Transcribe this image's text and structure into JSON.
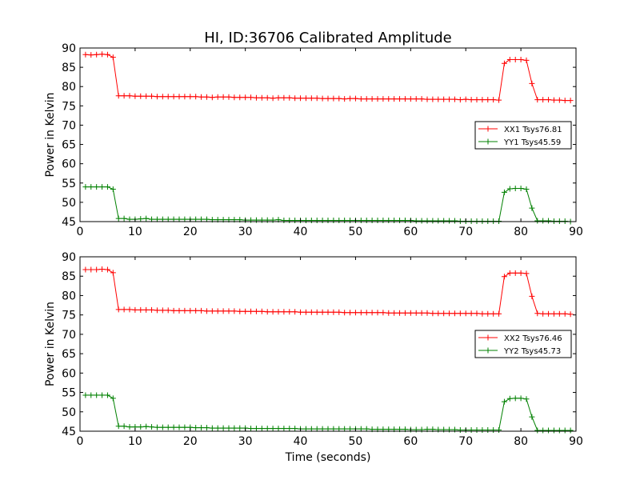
{
  "title": "HI, ID:36706 Calibrated Amplitude",
  "colors": {
    "xx": "#ff0000",
    "yy": "#008000"
  },
  "chart_data": [
    {
      "type": "line",
      "xlabel": "",
      "ylabel": "Power in Kelvin",
      "xlim": [
        0,
        90
      ],
      "ylim": [
        45,
        90
      ],
      "xticks": [
        "0",
        "10",
        "20",
        "30",
        "40",
        "50",
        "60",
        "70",
        "80",
        "90"
      ],
      "yticks": [
        "45",
        "50",
        "55",
        "60",
        "65",
        "70",
        "75",
        "80",
        "85",
        "90"
      ],
      "grid": false,
      "legend_position": "center-right",
      "x": [
        1,
        2,
        3,
        4,
        5,
        6,
        7,
        8,
        9,
        10,
        11,
        12,
        13,
        14,
        15,
        16,
        17,
        18,
        19,
        20,
        21,
        22,
        23,
        24,
        25,
        26,
        27,
        28,
        29,
        30,
        31,
        32,
        33,
        34,
        35,
        36,
        37,
        38,
        39,
        40,
        41,
        42,
        43,
        44,
        45,
        46,
        47,
        48,
        49,
        50,
        51,
        52,
        53,
        54,
        55,
        56,
        57,
        58,
        59,
        60,
        61,
        62,
        63,
        64,
        65,
        66,
        67,
        68,
        69,
        70,
        71,
        72,
        73,
        74,
        75,
        76,
        77,
        78,
        79,
        80,
        81,
        82,
        83,
        84,
        85,
        86,
        87,
        88,
        89
      ],
      "series": [
        {
          "name": "XX1 Tsys76.81",
          "color": "#ff0000",
          "values": [
            88.3,
            88.2,
            88.3,
            88.4,
            88.3,
            87.6,
            77.6,
            77.6,
            77.6,
            77.5,
            77.5,
            77.5,
            77.5,
            77.4,
            77.4,
            77.4,
            77.4,
            77.4,
            77.4,
            77.4,
            77.4,
            77.3,
            77.3,
            77.2,
            77.3,
            77.3,
            77.3,
            77.2,
            77.2,
            77.2,
            77.2,
            77.1,
            77.1,
            77.1,
            77.0,
            77.1,
            77.1,
            77.1,
            77.0,
            77.0,
            77.0,
            77.0,
            77.0,
            76.9,
            76.9,
            76.9,
            76.9,
            76.8,
            76.9,
            76.9,
            76.8,
            76.8,
            76.8,
            76.8,
            76.8,
            76.8,
            76.8,
            76.8,
            76.8,
            76.8,
            76.8,
            76.8,
            76.7,
            76.7,
            76.7,
            76.7,
            76.7,
            76.7,
            76.6,
            76.7,
            76.6,
            76.6,
            76.6,
            76.6,
            76.6,
            76.5,
            86.0,
            87.0,
            87.0,
            87.0,
            86.8,
            80.8,
            76.6,
            76.6,
            76.6,
            76.5,
            76.5,
            76.4,
            76.4
          ]
        },
        {
          "name": "YY1 Tsys45.59",
          "color": "#008000",
          "values": [
            54.0,
            54.0,
            54.0,
            54.0,
            54.0,
            53.4,
            45.8,
            45.8,
            45.6,
            45.6,
            45.7,
            45.8,
            45.6,
            45.6,
            45.6,
            45.6,
            45.6,
            45.6,
            45.6,
            45.6,
            45.6,
            45.6,
            45.6,
            45.5,
            45.5,
            45.5,
            45.5,
            45.5,
            45.5,
            45.4,
            45.4,
            45.4,
            45.4,
            45.4,
            45.4,
            45.5,
            45.3,
            45.3,
            45.3,
            45.3,
            45.3,
            45.3,
            45.3,
            45.3,
            45.3,
            45.3,
            45.3,
            45.3,
            45.3,
            45.3,
            45.3,
            45.3,
            45.3,
            45.3,
            45.3,
            45.3,
            45.3,
            45.3,
            45.3,
            45.3,
            45.2,
            45.2,
            45.2,
            45.2,
            45.2,
            45.2,
            45.2,
            45.2,
            45.1,
            45.1,
            45.1,
            45.1,
            45.1,
            45.1,
            45.1,
            45.1,
            52.6,
            53.5,
            53.6,
            53.6,
            53.4,
            48.5,
            45.2,
            45.2,
            45.2,
            45.1,
            45.1,
            45.1,
            45.0
          ]
        }
      ]
    },
    {
      "type": "line",
      "xlabel": "Time (seconds)",
      "ylabel": "Power in Kelvin",
      "xlim": [
        0,
        90
      ],
      "ylim": [
        45,
        90
      ],
      "xticks": [
        "0",
        "10",
        "20",
        "30",
        "40",
        "50",
        "60",
        "70",
        "80",
        "90"
      ],
      "yticks": [
        "45",
        "50",
        "55",
        "60",
        "65",
        "70",
        "75",
        "80",
        "85",
        "90"
      ],
      "grid": false,
      "legend_position": "center-right",
      "x": [
        1,
        2,
        3,
        4,
        5,
        6,
        7,
        8,
        9,
        10,
        11,
        12,
        13,
        14,
        15,
        16,
        17,
        18,
        19,
        20,
        21,
        22,
        23,
        24,
        25,
        26,
        27,
        28,
        29,
        30,
        31,
        32,
        33,
        34,
        35,
        36,
        37,
        38,
        39,
        40,
        41,
        42,
        43,
        44,
        45,
        46,
        47,
        48,
        49,
        50,
        51,
        52,
        53,
        54,
        55,
        56,
        57,
        58,
        59,
        60,
        61,
        62,
        63,
        64,
        65,
        66,
        67,
        68,
        69,
        70,
        71,
        72,
        73,
        74,
        75,
        76,
        77,
        78,
        79,
        80,
        81,
        82,
        83,
        84,
        85,
        86,
        87,
        88,
        89
      ],
      "series": [
        {
          "name": "XX2 Tsys76.46",
          "color": "#ff0000",
          "values": [
            86.7,
            86.7,
            86.7,
            86.8,
            86.7,
            85.9,
            76.4,
            76.4,
            76.4,
            76.3,
            76.3,
            76.3,
            76.3,
            76.2,
            76.2,
            76.2,
            76.1,
            76.1,
            76.1,
            76.1,
            76.1,
            76.1,
            76.0,
            76.0,
            76.0,
            76.0,
            76.0,
            76.0,
            75.9,
            75.9,
            75.9,
            75.9,
            75.9,
            75.8,
            75.8,
            75.8,
            75.8,
            75.8,
            75.8,
            75.7,
            75.7,
            75.7,
            75.7,
            75.7,
            75.7,
            75.7,
            75.7,
            75.6,
            75.6,
            75.6,
            75.6,
            75.6,
            75.6,
            75.6,
            75.6,
            75.5,
            75.5,
            75.5,
            75.5,
            75.5,
            75.5,
            75.5,
            75.5,
            75.4,
            75.4,
            75.4,
            75.4,
            75.4,
            75.4,
            75.4,
            75.4,
            75.4,
            75.3,
            75.3,
            75.3,
            75.3,
            84.9,
            85.8,
            85.8,
            85.8,
            85.7,
            79.8,
            75.4,
            75.3,
            75.3,
            75.3,
            75.3,
            75.3,
            75.2
          ]
        },
        {
          "name": "YY2 Tsys45.73",
          "color": "#008000",
          "values": [
            54.3,
            54.3,
            54.3,
            54.3,
            54.3,
            53.5,
            46.3,
            46.3,
            46.1,
            46.1,
            46.1,
            46.2,
            46.1,
            46.0,
            46.0,
            46.0,
            46.0,
            46.0,
            46.0,
            46.0,
            45.9,
            45.9,
            45.9,
            45.8,
            45.8,
            45.8,
            45.8,
            45.8,
            45.8,
            45.8,
            45.7,
            45.7,
            45.7,
            45.7,
            45.7,
            45.7,
            45.7,
            45.7,
            45.7,
            45.6,
            45.6,
            45.6,
            45.6,
            45.6,
            45.6,
            45.6,
            45.6,
            45.6,
            45.6,
            45.6,
            45.6,
            45.6,
            45.5,
            45.5,
            45.5,
            45.5,
            45.5,
            45.5,
            45.5,
            45.4,
            45.4,
            45.4,
            45.5,
            45.5,
            45.4,
            45.4,
            45.4,
            45.4,
            45.3,
            45.3,
            45.3,
            45.3,
            45.3,
            45.3,
            45.3,
            45.3,
            52.6,
            53.4,
            53.5,
            53.5,
            53.3,
            48.7,
            45.2,
            45.2,
            45.2,
            45.2,
            45.2,
            45.2,
            45.2
          ]
        }
      ]
    }
  ]
}
